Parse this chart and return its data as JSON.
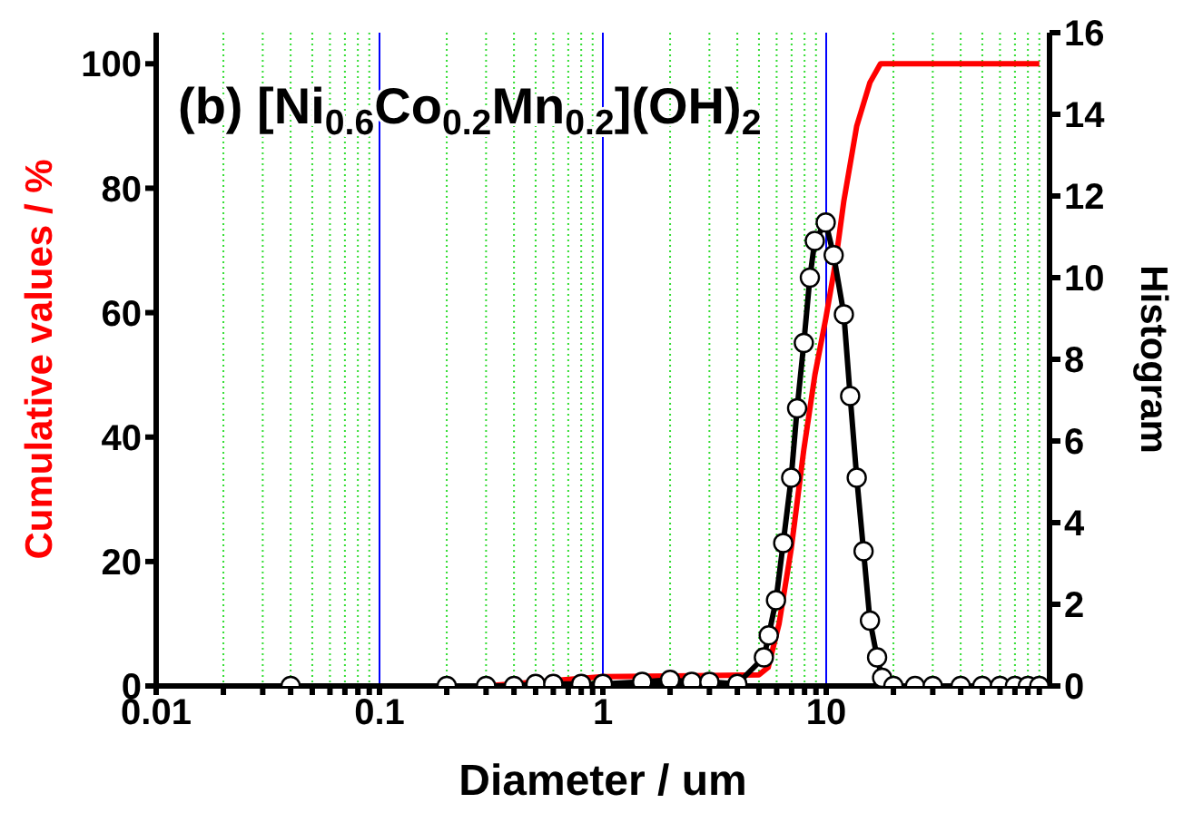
{
  "chart_data": {
    "type": "line",
    "xlabel": "Diameter / um",
    "ylabel": "Cumulative values / %",
    "y2label": "Histogram",
    "annotations": [
      "(b) [Ni$_{0.6}$Co$_{0.2}$Mn$_{0.2}$](OH)$_{2}$"
    ],
    "log": "x",
    "grid": "x",
    "legend": false,
    "xlim": [
      0.01,
      100
    ],
    "xticks": [
      0.01,
      {
        "value": 0.02,
        "label": null
      },
      {
        "value": 0.03,
        "label": null
      },
      {
        "value": 0.04,
        "label": null
      },
      {
        "value": 0.05,
        "label": null
      },
      {
        "value": 0.06,
        "label": null
      },
      {
        "value": 0.07,
        "label": null
      },
      {
        "value": 0.08,
        "label": null
      },
      {
        "value": 0.09,
        "label": null
      },
      0.1,
      {
        "value": 0.2,
        "label": null
      },
      {
        "value": 0.3,
        "label": null
      },
      {
        "value": 0.4,
        "label": null
      },
      {
        "value": 0.5,
        "label": null
      },
      {
        "value": 0.6,
        "label": null
      },
      {
        "value": 0.7,
        "label": null
      },
      {
        "value": 0.8,
        "label": null
      },
      {
        "value": 0.9,
        "label": null
      },
      1,
      {
        "value": 2,
        "label": null
      },
      {
        "value": 3,
        "label": null
      },
      {
        "value": 4,
        "label": null
      },
      {
        "value": 5,
        "label": null
      },
      {
        "value": 6,
        "label": null
      },
      {
        "value": 7,
        "label": null
      },
      {
        "value": 8,
        "label": null
      },
      {
        "value": 9,
        "label": null
      },
      10,
      {
        "value": 20,
        "label": null
      },
      {
        "value": 30,
        "label": null
      },
      {
        "value": 40,
        "label": null
      },
      {
        "value": 50,
        "label": null
      },
      {
        "value": 60,
        "label": null
      },
      {
        "value": 70,
        "label": null
      },
      {
        "value": 80,
        "label": null
      },
      {
        "value": 90,
        "label": null
      }
    ],
    "ylim": [
      0,
      105
    ],
    "yticks": [
      0,
      20,
      40,
      60,
      80,
      100
    ],
    "y2lim": [
      0,
      16
    ],
    "y2ticks": [
      0,
      2,
      4,
      6,
      8,
      10,
      12,
      14,
      16
    ],
    "series": [
      {
        "color": "#ff0000",
        "marker": "none",
        "x": [
          0.3,
          1,
          2,
          5,
          5.5,
          6.15,
          6.97,
          7.94,
          8.9,
          9.95,
          11,
          12,
          13.7,
          15.7,
          17.5,
          90
        ],
        "values": [
          0,
          1.5,
          1.6,
          1.8,
          3,
          10,
          22,
          38,
          50,
          59,
          68,
          78,
          90,
          97,
          100,
          100
        ]
      },
      {
        "color": "#000000",
        "marker": "circle",
        "axis": "y2",
        "x": [
          0.04,
          0.2,
          0.3,
          0.4,
          0.5,
          0.6,
          0.8,
          1,
          1.5,
          2,
          2.5,
          3,
          4,
          5.26,
          5.53,
          5.96,
          6.42,
          6.97,
          7.41,
          7.94,
          8.45,
          8.89,
          9.95,
          10.8,
          12,
          12.8,
          13.7,
          14.7,
          15.7,
          16.9,
          17.8,
          20,
          25,
          30,
          40,
          50,
          60,
          70,
          80,
          90
        ],
        "values": [
          0,
          0,
          0,
          0,
          0.05,
          0.05,
          0.05,
          0.05,
          0.1,
          0.15,
          0.1,
          0.1,
          0.05,
          0.7,
          1.24,
          2.1,
          3.5,
          5.1,
          6.8,
          8.4,
          10,
          10.9,
          11.35,
          10.55,
          9.1,
          7.1,
          5.1,
          3.3,
          1.6,
          0.7,
          0.2,
          0,
          0,
          0,
          0,
          0,
          0,
          0,
          0,
          0
        ]
      }
    ]
  }
}
